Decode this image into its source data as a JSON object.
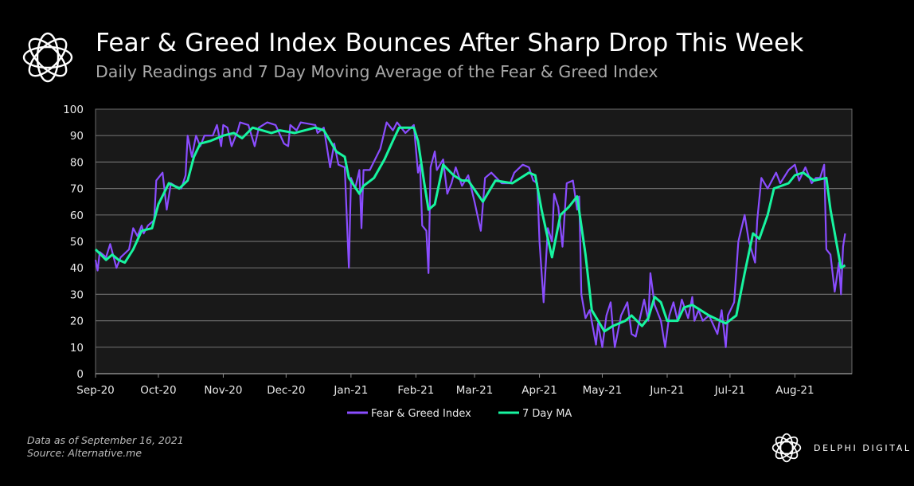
{
  "header": {
    "title": "Fear & Greed Index Bounces After Sharp Drop This Week",
    "subtitle": "Daily Readings and 7 Day Moving Average of the Fear & Greed Index"
  },
  "footer": {
    "note": "Data as of September 16, 2021",
    "source": "Source:  Alternative.me",
    "brand": "DELPHI DIGITAL"
  },
  "chart_data": {
    "type": "line",
    "title": "",
    "xlabel": "",
    "ylabel": "",
    "ylim": [
      0,
      100
    ],
    "yticks": [
      "0",
      "10",
      "20",
      "30",
      "40",
      "50",
      "60",
      "70",
      "80",
      "90",
      "100"
    ],
    "xticks": [
      {
        "date": "2020-09-01",
        "label": "Sep-20"
      },
      {
        "date": "2020-10-01",
        "label": "Oct-20"
      },
      {
        "date": "2020-11-01",
        "label": "Nov-20"
      },
      {
        "date": "2020-12-01",
        "label": "Dec-20"
      },
      {
        "date": "2021-01-01",
        "label": "Jan-21"
      },
      {
        "date": "2021-02-01",
        "label": "Feb-21"
      },
      {
        "date": "2021-03-01",
        "label": "Mar-21"
      },
      {
        "date": "2021-04-01",
        "label": "Apr-21"
      },
      {
        "date": "2021-05-01",
        "label": "May-21"
      },
      {
        "date": "2021-06-01",
        "label": "Jun-21"
      },
      {
        "date": "2021-07-01",
        "label": "Jul-21"
      },
      {
        "date": "2021-08-01",
        "label": "Aug-21"
      }
    ],
    "grid": true,
    "legend": "bottom",
    "colors": {
      "background": "#000000",
      "plot_bg": "#191919",
      "grid": "#6a6a6a",
      "index": "#8a4dff",
      "ma": "#17f5a0"
    },
    "series": [
      {
        "name": "Fear & Greed Index",
        "points": [
          [
            "2020-09-01",
            43
          ],
          [
            "2020-09-02",
            39
          ],
          [
            "2020-09-03",
            46
          ],
          [
            "2020-09-06",
            44
          ],
          [
            "2020-09-08",
            49
          ],
          [
            "2020-09-11",
            40
          ],
          [
            "2020-09-13",
            44
          ],
          [
            "2020-09-17",
            47
          ],
          [
            "2020-09-19",
            55
          ],
          [
            "2020-09-21",
            52
          ],
          [
            "2020-09-23",
            56
          ],
          [
            "2020-09-24",
            53
          ],
          [
            "2020-09-26",
            56
          ],
          [
            "2020-09-29",
            58
          ],
          [
            "2020-09-30",
            73
          ],
          [
            "2020-10-03",
            76
          ],
          [
            "2020-10-05",
            62
          ],
          [
            "2020-10-07",
            72
          ],
          [
            "2020-10-09",
            71
          ],
          [
            "2020-10-12",
            70
          ],
          [
            "2020-10-14",
            75
          ],
          [
            "2020-10-15",
            90
          ],
          [
            "2020-10-17",
            82
          ],
          [
            "2020-10-19",
            90
          ],
          [
            "2020-10-21",
            86
          ],
          [
            "2020-10-23",
            90
          ],
          [
            "2020-10-27",
            90
          ],
          [
            "2020-10-29",
            94
          ],
          [
            "2020-10-31",
            86
          ],
          [
            "2020-11-01",
            94
          ],
          [
            "2020-11-03",
            93
          ],
          [
            "2020-11-05",
            86
          ],
          [
            "2020-11-08",
            92
          ],
          [
            "2020-11-09",
            95
          ],
          [
            "2020-11-13",
            94
          ],
          [
            "2020-11-16",
            86
          ],
          [
            "2020-11-18",
            93
          ],
          [
            "2020-11-22",
            95
          ],
          [
            "2020-11-26",
            94
          ],
          [
            "2020-11-30",
            87
          ],
          [
            "2020-12-02",
            86
          ],
          [
            "2020-12-03",
            94
          ],
          [
            "2020-12-06",
            92
          ],
          [
            "2020-12-08",
            95
          ],
          [
            "2020-12-15",
            94
          ],
          [
            "2020-12-16",
            91
          ],
          [
            "2020-12-19",
            93
          ],
          [
            "2020-12-22",
            78
          ],
          [
            "2020-12-24",
            87
          ],
          [
            "2020-12-26",
            79
          ],
          [
            "2020-12-29",
            78
          ],
          [
            "2020-12-31",
            40
          ],
          [
            "2021-01-01",
            74
          ],
          [
            "2021-01-03",
            70
          ],
          [
            "2021-01-05",
            77
          ],
          [
            "2021-01-06",
            55
          ],
          [
            "2021-01-07",
            77
          ],
          [
            "2021-01-10",
            77
          ],
          [
            "2021-01-15",
            85
          ],
          [
            "2021-01-18",
            95
          ],
          [
            "2021-01-21",
            92
          ],
          [
            "2021-01-23",
            95
          ],
          [
            "2021-01-27",
            91
          ],
          [
            "2021-01-31",
            94
          ],
          [
            "2021-02-02",
            76
          ],
          [
            "2021-02-03",
            79
          ],
          [
            "2021-02-04",
            56
          ],
          [
            "2021-02-06",
            54
          ],
          [
            "2021-02-07",
            38
          ],
          [
            "2021-02-08",
            78
          ],
          [
            "2021-02-10",
            84
          ],
          [
            "2021-02-11",
            77
          ],
          [
            "2021-02-14",
            81
          ],
          [
            "2021-02-16",
            68
          ],
          [
            "2021-02-18",
            72
          ],
          [
            "2021-02-20",
            78
          ],
          [
            "2021-02-23",
            71
          ],
          [
            "2021-02-26",
            75
          ],
          [
            "2021-03-01",
            65
          ],
          [
            "2021-03-04",
            54
          ],
          [
            "2021-03-06",
            74
          ],
          [
            "2021-03-09",
            76
          ],
          [
            "2021-03-14",
            72
          ],
          [
            "2021-03-18",
            72
          ],
          [
            "2021-03-20",
            76
          ],
          [
            "2021-03-24",
            79
          ],
          [
            "2021-03-27",
            78
          ],
          [
            "2021-03-29",
            73
          ],
          [
            "2021-03-31",
            72
          ],
          [
            "2021-04-01",
            50
          ],
          [
            "2021-04-03",
            27
          ],
          [
            "2021-04-05",
            55
          ],
          [
            "2021-04-07",
            50
          ],
          [
            "2021-04-08",
            68
          ],
          [
            "2021-04-10",
            63
          ],
          [
            "2021-04-12",
            48
          ],
          [
            "2021-04-14",
            72
          ],
          [
            "2021-04-17",
            73
          ],
          [
            "2021-04-19",
            62
          ],
          [
            "2021-04-20",
            67
          ],
          [
            "2021-04-21",
            30
          ],
          [
            "2021-04-23",
            21
          ],
          [
            "2021-04-25",
            24
          ],
          [
            "2021-04-28",
            11
          ],
          [
            "2021-04-29",
            19
          ],
          [
            "2021-05-01",
            10
          ],
          [
            "2021-05-03",
            22
          ],
          [
            "2021-05-05",
            27
          ],
          [
            "2021-05-06",
            18
          ],
          [
            "2021-05-07",
            10
          ],
          [
            "2021-05-10",
            22
          ],
          [
            "2021-05-13",
            27
          ],
          [
            "2021-05-15",
            15
          ],
          [
            "2021-05-17",
            14
          ],
          [
            "2021-05-21",
            28
          ],
          [
            "2021-05-23",
            20
          ],
          [
            "2021-05-24",
            38
          ],
          [
            "2021-05-26",
            26
          ],
          [
            "2021-05-29",
            20
          ],
          [
            "2021-05-31",
            10
          ],
          [
            "2021-06-02",
            22
          ],
          [
            "2021-06-04",
            27
          ],
          [
            "2021-06-06",
            20
          ],
          [
            "2021-06-08",
            28
          ],
          [
            "2021-06-11",
            21
          ],
          [
            "2021-06-13",
            29
          ],
          [
            "2021-06-14",
            20
          ],
          [
            "2021-06-16",
            24
          ],
          [
            "2021-06-18",
            20
          ],
          [
            "2021-06-21",
            22
          ],
          [
            "2021-06-25",
            15
          ],
          [
            "2021-06-27",
            24
          ],
          [
            "2021-06-29",
            10
          ],
          [
            "2021-06-30",
            22
          ],
          [
            "2021-07-03",
            27
          ],
          [
            "2021-07-05",
            50
          ],
          [
            "2021-07-08",
            60
          ],
          [
            "2021-07-10",
            50
          ],
          [
            "2021-07-13",
            42
          ],
          [
            "2021-07-14",
            58
          ],
          [
            "2021-07-16",
            74
          ],
          [
            "2021-07-19",
            70
          ],
          [
            "2021-07-23",
            76
          ],
          [
            "2021-07-25",
            72
          ],
          [
            "2021-07-29",
            77
          ],
          [
            "2021-08-01",
            79
          ],
          [
            "2021-08-03",
            73
          ],
          [
            "2021-08-06",
            78
          ],
          [
            "2021-08-09",
            72
          ],
          [
            "2021-08-11",
            74
          ],
          [
            "2021-08-13",
            74
          ],
          [
            "2021-08-15",
            79
          ],
          [
            "2021-08-16",
            47
          ],
          [
            "2021-08-18",
            45
          ],
          [
            "2021-08-20",
            31
          ],
          [
            "2021-08-22",
            42
          ],
          [
            "2021-08-23",
            30
          ],
          [
            "2021-08-24",
            48
          ],
          [
            "2021-08-25",
            53
          ]
        ]
      },
      {
        "name": "7 Day MA",
        "points": [
          [
            "2020-09-01",
            47
          ],
          [
            "2020-09-06",
            43
          ],
          [
            "2020-09-09",
            45
          ],
          [
            "2020-09-12",
            43
          ],
          [
            "2020-09-15",
            42
          ],
          [
            "2020-09-19",
            47
          ],
          [
            "2020-09-23",
            54
          ],
          [
            "2020-09-28",
            55
          ],
          [
            "2020-10-01",
            64
          ],
          [
            "2020-10-06",
            72
          ],
          [
            "2020-10-11",
            70
          ],
          [
            "2020-10-15",
            73
          ],
          [
            "2020-10-18",
            82
          ],
          [
            "2020-10-21",
            87
          ],
          [
            "2020-10-26",
            88
          ],
          [
            "2020-11-01",
            90
          ],
          [
            "2020-11-06",
            91
          ],
          [
            "2020-11-10",
            89
          ],
          [
            "2020-11-15",
            93
          ],
          [
            "2020-11-24",
            91
          ],
          [
            "2020-11-28",
            92
          ],
          [
            "2020-12-05",
            91
          ],
          [
            "2020-12-10",
            92
          ],
          [
            "2020-12-15",
            93
          ],
          [
            "2020-12-19",
            92
          ],
          [
            "2020-12-22",
            88
          ],
          [
            "2020-12-25",
            84
          ],
          [
            "2020-12-29",
            82
          ],
          [
            "2020-12-31",
            74
          ],
          [
            "2021-01-05",
            68
          ],
          [
            "2021-01-07",
            71
          ],
          [
            "2021-01-12",
            74
          ],
          [
            "2021-01-17",
            81
          ],
          [
            "2021-01-21",
            88
          ],
          [
            "2021-01-24",
            93
          ],
          [
            "2021-01-31",
            93
          ],
          [
            "2021-02-02",
            88
          ],
          [
            "2021-02-05",
            72
          ],
          [
            "2021-02-07",
            62
          ],
          [
            "2021-02-10",
            64
          ],
          [
            "2021-02-14",
            79
          ],
          [
            "2021-02-19",
            75
          ],
          [
            "2021-02-23",
            73
          ],
          [
            "2021-02-26",
            73
          ],
          [
            "2021-03-05",
            65
          ],
          [
            "2021-03-08",
            69
          ],
          [
            "2021-03-11",
            73
          ],
          [
            "2021-03-19",
            72
          ],
          [
            "2021-03-27",
            76
          ],
          [
            "2021-03-30",
            75
          ],
          [
            "2021-04-02",
            62
          ],
          [
            "2021-04-07",
            44
          ],
          [
            "2021-04-11",
            60
          ],
          [
            "2021-04-15",
            63
          ],
          [
            "2021-04-19",
            67
          ],
          [
            "2021-04-23",
            45
          ],
          [
            "2021-04-26",
            24
          ],
          [
            "2021-05-02",
            16
          ],
          [
            "2021-05-06",
            18
          ],
          [
            "2021-05-12",
            20
          ],
          [
            "2021-05-15",
            22
          ],
          [
            "2021-05-20",
            18
          ],
          [
            "2021-05-23",
            21
          ],
          [
            "2021-05-26",
            29
          ],
          [
            "2021-05-29",
            27
          ],
          [
            "2021-06-01",
            20
          ],
          [
            "2021-06-06",
            20
          ],
          [
            "2021-06-09",
            25
          ],
          [
            "2021-06-13",
            26
          ],
          [
            "2021-06-21",
            22
          ],
          [
            "2021-06-29",
            19
          ],
          [
            "2021-07-04",
            22
          ],
          [
            "2021-07-08",
            38
          ],
          [
            "2021-07-12",
            53
          ],
          [
            "2021-07-15",
            51
          ],
          [
            "2021-07-19",
            60
          ],
          [
            "2021-07-22",
            70
          ],
          [
            "2021-07-29",
            72
          ],
          [
            "2021-08-01",
            75
          ],
          [
            "2021-08-05",
            76
          ],
          [
            "2021-08-10",
            73
          ],
          [
            "2021-08-16",
            74
          ],
          [
            "2021-08-18",
            62
          ],
          [
            "2021-08-23",
            40
          ],
          [
            "2021-08-25",
            41
          ]
        ]
      }
    ]
  }
}
